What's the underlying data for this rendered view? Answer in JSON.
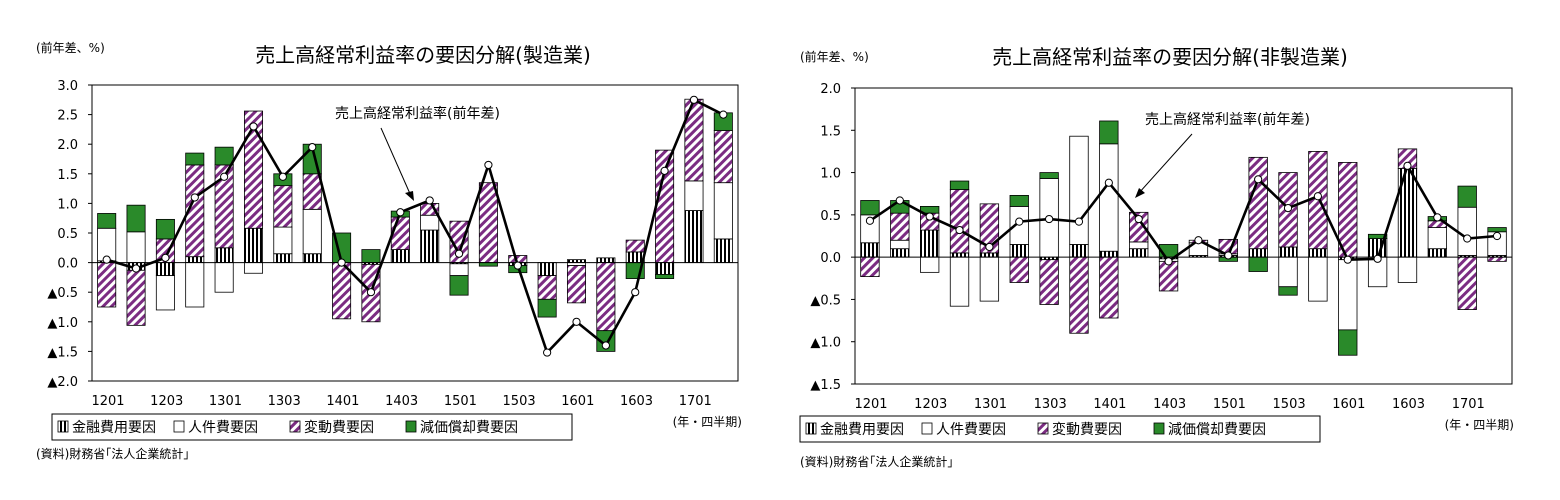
{
  "colors": {
    "finance": "#000000",
    "labor": "#ffffff",
    "variable": "#7b2c82",
    "depreciation": "#2a8a2a",
    "line": "#000000"
  },
  "chart_data": [
    {
      "type": "bar",
      "title": "売上高経常利益率の要因分解(製造業)",
      "ylabel": "(前年差、%)",
      "xlabel": "(年・四半期)",
      "ylim": [
        -2.0,
        3.0
      ],
      "y_ticks": [
        3.0,
        2.5,
        2.0,
        1.5,
        1.0,
        0.5,
        0.0,
        -0.5,
        -1.0,
        -1.5,
        -2.0
      ],
      "y_tick_labels": [
        "3.0",
        "2.5",
        "2.0",
        "1.5",
        "1.0",
        "0.5",
        "0.0",
        "▲0.5",
        "▲1.0",
        "▲1.5",
        "▲2.0"
      ],
      "x_tick_labels": [
        "1201",
        "1203",
        "1301",
        "1303",
        "1401",
        "1403",
        "1501",
        "1503",
        "1601",
        "1603",
        "1701"
      ],
      "categories": [
        "1201",
        "1202",
        "1203",
        "1204",
        "1301",
        "1302",
        "1303",
        "1304",
        "1401",
        "1402",
        "1403",
        "1404",
        "1501",
        "1502",
        "1503",
        "1504",
        "1601",
        "1602",
        "1603",
        "1604",
        "1701",
        "1702"
      ],
      "series": [
        {
          "name": "金融費用要因",
          "values": [
            0.03,
            -0.13,
            -0.22,
            0.1,
            0.25,
            0.58,
            0.15,
            0.15,
            0.0,
            -0.03,
            0.22,
            0.55,
            -0.02,
            0.0,
            -0.05,
            -0.22,
            0.05,
            0.08,
            0.18,
            -0.2,
            0.88,
            0.4
          ]
        },
        {
          "name": "人件費要因",
          "values": [
            0.55,
            0.52,
            -0.58,
            -0.75,
            -0.5,
            -0.18,
            0.45,
            0.75,
            0.0,
            0.0,
            0.0,
            0.25,
            -0.2,
            0.0,
            0.0,
            0.0,
            -0.05,
            0.0,
            0.0,
            0.0,
            0.5,
            0.95
          ]
        },
        {
          "name": "変動費要因",
          "values": [
            -0.75,
            -0.93,
            0.4,
            1.55,
            1.4,
            1.98,
            0.7,
            0.6,
            -0.95,
            -0.97,
            0.55,
            0.2,
            0.7,
            1.35,
            0.12,
            -0.4,
            -0.63,
            -1.15,
            0.2,
            1.9,
            1.38,
            0.88
          ]
        },
        {
          "name": "減価償却費要因",
          "values": [
            0.25,
            0.45,
            0.33,
            0.2,
            0.3,
            0.0,
            0.2,
            0.5,
            0.5,
            0.22,
            0.1,
            0.0,
            -0.33,
            -0.06,
            -0.12,
            -0.3,
            0.0,
            -0.35,
            -0.27,
            -0.07,
            0.0,
            0.3
          ]
        }
      ],
      "line": {
        "name": "売上高経常利益率(前年差)",
        "values": [
          0.05,
          -0.1,
          0.08,
          1.1,
          1.45,
          2.3,
          1.45,
          1.95,
          0.0,
          -0.5,
          0.85,
          1.05,
          0.15,
          1.65,
          -0.05,
          -1.52,
          -1.0,
          -1.4,
          -0.5,
          1.55,
          2.75,
          2.5
        ]
      },
      "annotation": "売上高経常利益率(前年差)",
      "source": "(資料)財務省｢法人企業統計｣"
    },
    {
      "type": "bar",
      "title": "売上高経常利益率の要因分解(非製造業)",
      "ylabel": "(前年差、%)",
      "xlabel": "(年・四半期)",
      "ylim": [
        -1.5,
        2.0
      ],
      "y_ticks": [
        2.0,
        1.5,
        1.0,
        0.5,
        0.0,
        -0.5,
        -1.0,
        -1.5
      ],
      "y_tick_labels": [
        "2.0",
        "1.5",
        "1.0",
        "0.5",
        "0.0",
        "▲0.5",
        "▲1.0",
        "▲1.5"
      ],
      "x_tick_labels": [
        "1201",
        "1203",
        "1301",
        "1303",
        "1401",
        "1403",
        "1501",
        "1503",
        "1601",
        "1603",
        "1701"
      ],
      "categories": [
        "1201",
        "1202",
        "1203",
        "1204",
        "1301",
        "1302",
        "1303",
        "1304",
        "1401",
        "1402",
        "1403",
        "1404",
        "1501",
        "1502",
        "1503",
        "1504",
        "1601",
        "1602",
        "1603",
        "1604",
        "1701",
        "1702"
      ],
      "series": [
        {
          "name": "金融費用要因",
          "values": [
            0.17,
            0.1,
            0.32,
            0.05,
            0.05,
            0.15,
            -0.03,
            0.15,
            0.07,
            0.1,
            -0.02,
            0.02,
            0.02,
            0.1,
            0.12,
            0.1,
            -0.03,
            0.22,
            1.05,
            0.1,
            0.02,
            0.02
          ]
        },
        {
          "name": "人件費要因",
          "values": [
            0.33,
            0.1,
            -0.18,
            -0.58,
            -0.52,
            0.45,
            0.93,
            1.28,
            1.27,
            0.08,
            -0.03,
            0.15,
            0.02,
            0.0,
            -0.35,
            -0.52,
            -0.83,
            -0.35,
            -0.3,
            0.25,
            0.57,
            0.28
          ]
        },
        {
          "name": "変動費要因",
          "values": [
            -0.23,
            0.32,
            0.2,
            0.75,
            0.58,
            -0.3,
            -0.53,
            -0.9,
            -0.72,
            0.35,
            -0.35,
            0.03,
            0.17,
            1.08,
            0.88,
            1.15,
            1.12,
            0.0,
            0.23,
            0.08,
            -0.62,
            -0.05
          ]
        },
        {
          "name": "減価償却費要因",
          "values": [
            0.17,
            0.15,
            0.08,
            0.1,
            0.0,
            0.13,
            0.07,
            0.0,
            0.27,
            0.0,
            0.15,
            0.0,
            -0.05,
            -0.17,
            -0.1,
            0.0,
            -0.3,
            0.05,
            0.0,
            0.05,
            0.25,
            0.05
          ]
        }
      ],
      "line": {
        "name": "売上高経常利益率(前年差)",
        "values": [
          0.43,
          0.67,
          0.48,
          0.32,
          0.12,
          0.42,
          0.45,
          0.42,
          0.88,
          0.45,
          -0.05,
          0.2,
          0.02,
          0.92,
          0.58,
          0.72,
          -0.03,
          -0.02,
          1.08,
          0.47,
          0.22,
          0.25
        ]
      },
      "annotation": "売上高経常利益率(前年差)",
      "source": "(資料)財務省｢法人企業統計｣"
    }
  ]
}
